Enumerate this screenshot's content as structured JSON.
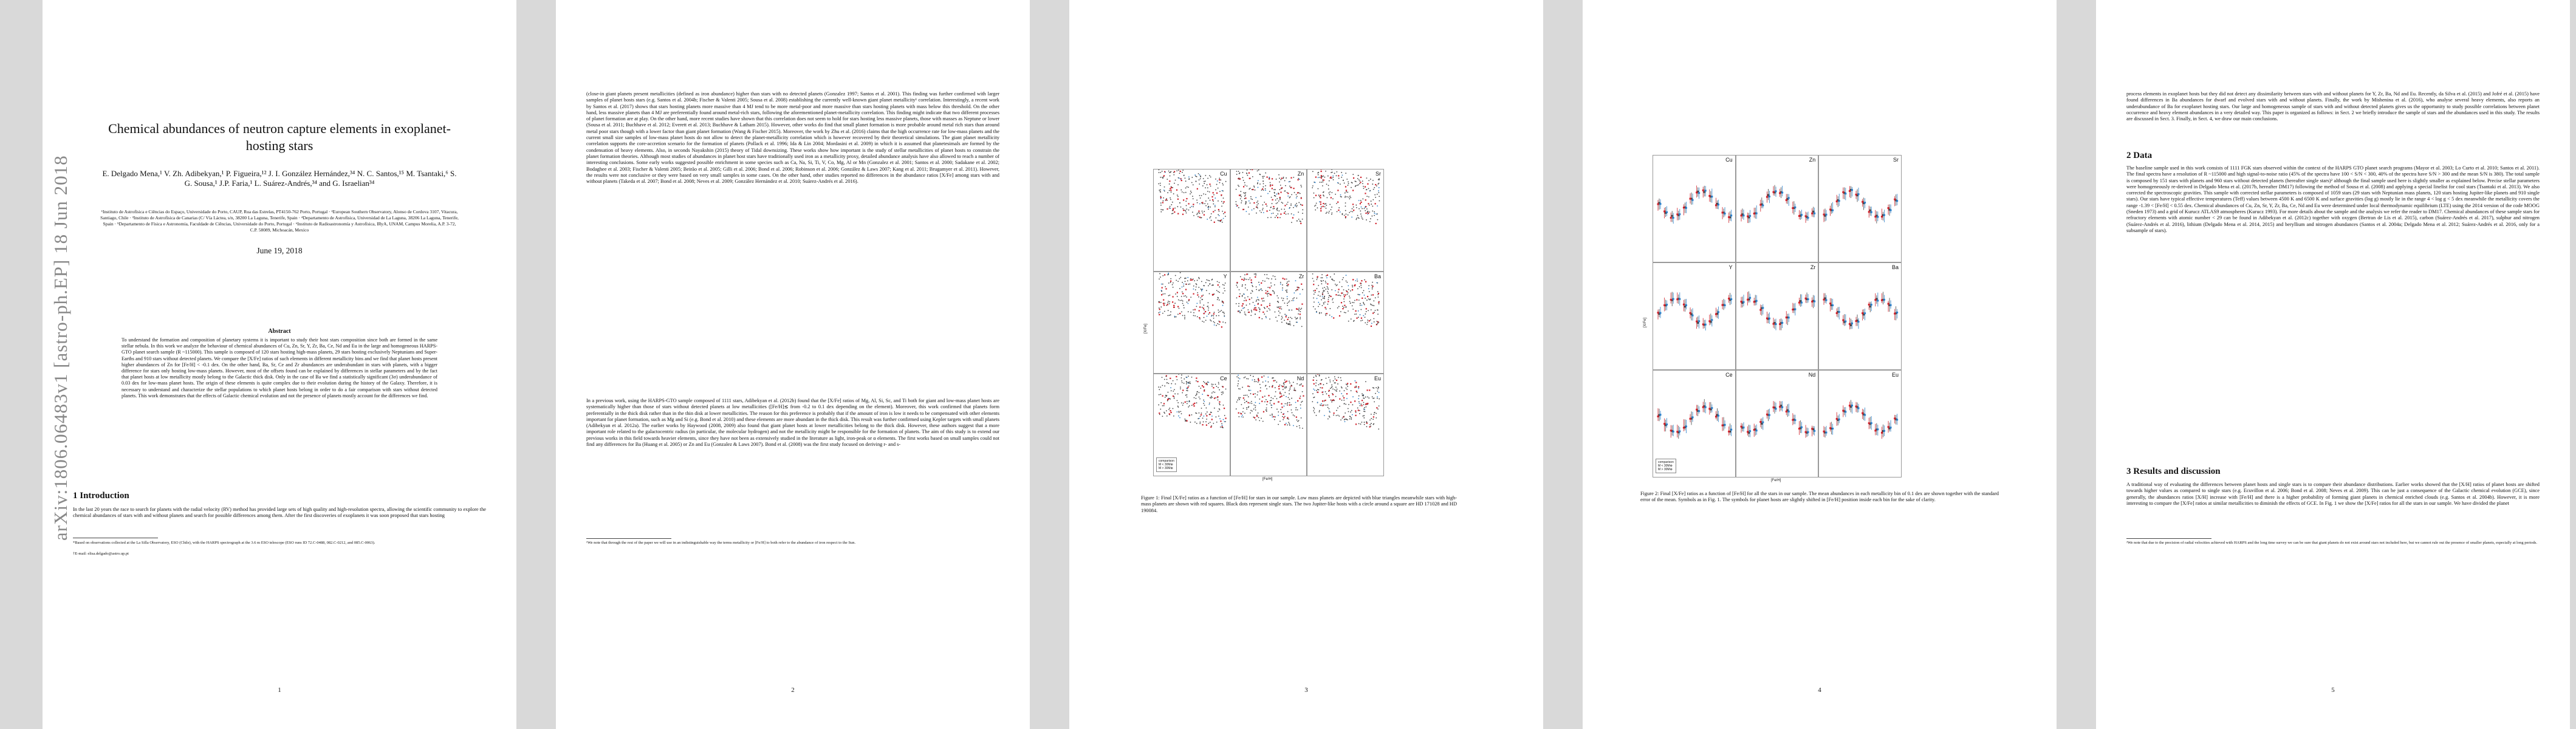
{
  "arxiv_stamp": "arXiv:1806.06483v1  [astro-ph.EP]  18 Jun 2018",
  "page1": {
    "title": "Chemical abundances of neutron capture elements in exoplanet-hosting stars",
    "authors": "E. Delgado Mena,¹ V. Zh. Adibekyan,¹ P. Figueira,¹² J. I. González Hernández,³⁴ N. C. Santos,¹⁵ M. Tsantaki,⁶ S. G. Sousa,¹ J.P. Faria,¹ L. Suárez-Andrés,³⁴ and G. Israelian³⁴",
    "affiliations": "¹Instituto de Astrofísica e Ciências do Espaço, Universidade do Porto, CAUP, Rua das Estrelas, PT4150-762 Porto, Portugal · ²European Southern Observatory, Alonso de Cordova 3107, Vitacura, Santiago, Chile · ³Instituto de Astrofísica de Canarias (C/ Vía Láctea, s/n, 38200 La Laguna, Tenerife, Spain · ⁴Departamento de Astrofísica, Universidad de La Laguna, 38206 La Laguna, Tenerife, Spain · ⁵Departamento de Física e Astronomia, Faculdade de Ciências, Universidade do Porto, Portugal · ⁶Instituto de Radioastronomía y Astrofísica, IRyA, UNAM, Campus Morelia, A.P. 3-72, C.P. 58089, Michoacán, Mexico",
    "date": "June 19, 2018",
    "abstract_heading": "Abstract",
    "abstract": "To understand the formation and composition of planetary systems it is important to study their host stars composition since both are formed in the same stellar nebula. In this work we analyze the behaviour of chemical abundances of Cu, Zn, Sr, Y, Zr, Ba, Ce, Nd and Eu in the large and homogeneous HARPS-GTO planet search sample (R ~115000). This sample is composed of 120 stars hosting high-mass planets, 29 stars hosting exclusively Neptunians and Super-Earths and 910 stars without detected planets. We compare the [X/Fe] ratios of such elements in different metallicity bins and we find that planet hosts present higher abundances of Zn for [Fe/H] < -0.1 dex. On the other hand, Ba, Sr, Ce and Zr abundances are underabundant in stars with planets, with a bigger difference for stars only hosting low-mass planets. However, most of the offsets found can be explained by differences in stellar parameters and by the fact that planet hosts at low metallicity mostly belong to the Galactic thick disk. Only in the case of Ba we find a statistically significant (3σ) underabundance of 0.03 dex for low-mass planet hosts. The origin of these elements is quite complex due to their evolution during the history of the Galaxy. Therefore, it is necessary to understand and characterize the stellar populations to which planet hosts belong in order to do a fair comparison with stars without detected planets. This work demonstrates that the effects of Galactic chemical evolution and not the presence of planets mostly account for the differences we find.",
    "section1": "1   Introduction",
    "intro": "In the last 20 years the race to search for planets with the radial velocity (RV) method has provided large sets of high quality and high-resolution spectra, allowing the scientific community to explore the chemical abundances of stars with and without planets and search for possible differences among them. After the first discoveries of exoplanets it was soon proposed that stars hosting",
    "footnote1": "*Based on observations collected at the La Silla Observatory, ESO (Chile), with the HARPS spectrograph at the 3.6 m ESO telescope (ESO runs ID 72.C-0488, 082.C-0212, and 085.C-0063).",
    "footnote2": "†E-mail: elisa.delgado@astro.up.pt",
    "page_number": "1"
  },
  "page2": {
    "col1": "(close-in giant planets present metallicities (defined as iron abundance) higher than stars with no detected planets (Gonzalez 1997; Santos et al. 2001). This finding was further confirmed with larger samples of planet hosts stars (e.g. Santos et al. 2004b; Fischer & Valenti 2005; Sousa et al. 2008) establishing the currently well-known giant planet metallicity¹ correlation. Interestingly, a recent work by Santos et al. (2017) shows that stars hosting planets more massive than 4 MJ tend to be more metal-poor and more massive than stars hosting planets with mass below this threshold. On the other hand, less massive planets than 4 MJ are preferentially found around metal-rich stars, following the aforementioned planet-metallicity correlation. This finding might indicate that two different processes of planet formation are at play. On the other hand, more recent studies have shown that this correlation does not seem to hold for stars hosting less massive planets, those with masses as Neptune or lower (Sousa et al. 2011; Buchhave et al. 2012; Everett et al. 2013; Buchhave & Latham 2015). However, other works do find that small planet formation is more probable around metal rich stars than around metal poor stars though with a lower factor than giant planet formation (Wang & Fischer 2015). Moreover, the work by Zhu et al. (2016) claims that the high occurrence rate for low-mass planets and the current small size samples of low-mass planet hosts do not allow to detect the planet-metallicity correlation which is however recovered by their theoretical simulations. The giant planet metallicity correlation supports the core-accretion scenario for the formation of planets (Pollack et al. 1996; Ida & Lin 2004; Mordasini et al. 2009) in which it is assumed that planetesimals are formed by the condensation of heavy elements. Also, in seconds Nayakshin (2015) theory of Tidal downsizing. These works show how important is the study of stellar metallicities of planet hosts to constrain the planet formation theories. Although most studies of abundances in planet host stars have traditionally used iron as a metallicity proxy, detailed abundance analysis have also allowed to reach a number of interesting conclusions. Some early works suggested possible enrichment in some species such as Ca, Na, Si, Ti, V, Co, Mg, Al or Mn (Gonzalez et al. 2001; Santos et al. 2000; Sadakane et al. 2002; Bodaghee et al. 2003; Fischer & Valenti 2005; Beirão et al. 2005; Gilli et al. 2006; Bond et al. 2006; Robinson et al. 2006; González & Laws 2007; Kang et al. 2011; Brugamyer et al. 2011). However, the results were not conclusive or they were based on very small samples in some cases. On the other hand, other studies reported no differences in the abundance ratios [X/Fe] among stars with and without planets (Takeda et al. 2007; Bond et al. 2008; Neves et al. 2009; González Hernández et al. 2010; Suárez-Andrés et al. 2016).",
    "col2": "In a previous work, using the HARPS-GTO sample composed of 1111 stars, Adibekyan et al. (2012b) found that the [X/Fe] ratios of Mg, Al, Si, Sc, and Ti both for giant and low-mass planet hosts are systematically higher than those of stars without detected planets at low metallicities ([Fe/H]≲ from -0.2 to 0.1 dex depending on the element). Moreover, this work confirmed that planets form preferentially in the thick disk rather than in the thin disk at lower metallicities. The reason for this preference is probably that if the amount of iron is low it needs to be compensated with other elements important for planet formation, such as Mg and Si (e.g. Bond et al. 2010) and these elements are more abundant in the thick disk. This result was further confirmed using Kepler targets with small planets (Adibekyan et al. 2012a). The earlier works by Haywood (2008, 2009) also found that giant planet hosts at lower metallicities belong to the thick disk. However, these authors suggest that a more important role related to the galactocentric radius (in particular, the molecular hydrogen) and not the metallicity might be responsible for the formation of planets. The aim of this study is to extend our previous works in this field towards heavier elements, since they have not been as extensively studied in the literature as light, iron-peak or α elements. The first works based on small samples could not find any differences for Ba (Huang et al. 2005) or Zn and Eu (Gonzalez & Laws 2007). Bond et al. (2008) was the first study focused on deriving r- and s-",
    "footnote": "¹We note that through the rest of the paper we will use in an indistinguishable way the terms metallicity or [Fe/H] to both refer to the abundance of iron respect to the Sun.",
    "page_number": "2"
  },
  "page3": {
    "panels": [
      "Cu",
      "Zn",
      "Sr",
      "Y",
      "Zr",
      "Ba",
      "Ce",
      "Nd",
      "Eu"
    ],
    "legend": [
      "comparison",
      "M < 30M⊕",
      "M > 30M⊕"
    ],
    "xlabel": "[Fe/H]",
    "ylabel": "[X/Fe]",
    "caption": "Figure 1: Final [X/Fe] ratios as a function of [Fe/H] for stars in our sample. Low mass planets are depicted with blue triangles meanwhile stars with high-mass planets are shown with red squares. Black dots represent single stars. The two Jupiter-like hosts with a circle around a square are HD 171028 and HD 190084.",
    "page_number": "3"
  },
  "page4": {
    "panels": [
      "Cu",
      "Zn",
      "Sr",
      "Y",
      "Zr",
      "Ba",
      "Ce",
      "Nd",
      "Eu"
    ],
    "legend": [
      "comparison",
      "M < 30M⊕",
      "M > 30M⊕"
    ],
    "xlabel": "[Fe/H]",
    "ylabel": "[X/Fe]",
    "caption": "Figure 2: Final [X/Fe] ratios as a function of [Fe/H] for all the stars in our sample. The mean abundances in each metallicity bin of 0.1 dex are shown together with the standard error of the mean. Symbols as in Fig. 1. The symbols for planet hosts are slightly shifted in [Fe/H] position inside each bin for the sake of clarity.",
    "page_number": "4"
  },
  "page5": {
    "col1": "process elements in exoplanet hosts but they did not detect any dissimilarity between stars with and without planets for Y, Zr, Ba, Nd and Eu. Recently, da Silva et al. (2015) and Jofré et al. (2015) have found differences in Ba abundances for dwarf and evolved stars with and without planets. Finally, the work by Mishenina et al. (2016), who analyse several heavy elements, also reports an underabundance of Ba for exoplanet hosting stars. Our large and homogeneous sample of stars with and without detected planets gives us the opportunity to study possible correlations between planet occurrence and heavy element abundances in a very detailed way. This paper is organized as follows: in Sect. 2 we briefly introduce the sample of stars and the abundances used in this study. The results are discussed in Sect. 3. Finally, in Sect. 4, we draw our main conclusions.",
    "section2": "2   Data",
    "data": "The baseline sample used in this work consists of 1111 FGK stars observed within the context of the HARPS GTO planet search programs (Mayor et al. 2003; Lo Curto et al. 2010; Santos et al. 2011). The final spectra have a resolution of R ~115000 and high signal-to-noise ratio (45% of the spectra have 100 < S/N < 300, 40% of the spectra have S/N > 300 and the mean S/N is 380). The total sample is composed by 151 stars with planets and 960 stars without detected planets (hereafter single stars)² although the final sample used here is slightly smaller as explained below. Precise stellar parameters were homogeneously re-derived in Delgado Mena et al. (2017b, hereafter DM17) following the method of Sousa et al. (2008) and applying a special linelist for cool stars (Tsantaki et al. 2013). We also corrected the spectroscopic gravities. This sample with corrected stellar parameters is composed of 1059 stars (29 stars with Neptunian mass planets, 120 stars hosting Jupiter-like planets and 910 single stars). Our stars have typical effective temperatures (Teff) values between 4500 K and 6500 K and surface gravities (log g) mostly lie in the range 4 < log g < 5 dex meanwhile the metallicity covers the range -1.39 < [Fe/H] < 0.55 dex. Chemical abundances of Cu, Zn, Sr, Y, Zr, Ba, Ce, Nd and Eu were determined under local thermodynamic equilibrium (LTE) using the 2014 version of the code MOOG (Sneden 1973) and a grid of Kurucz ATLAS9 atmospheres (Kurucz 1993). For more details about the sample and the analysis we refer the reader to DM17. Chemical abundances of these sample stars for refractory elements with atomic number < 29 can be found in Adibekyan et al. (2012c) together with oxygen (Bertran de Lis et al. 2015), carbon (Suárez-Andrés et al. 2017), sulphur and nitrogen (Suárez-Andrés et al. 2016), lithium (Delgado Mena et al. 2014, 2015) and beryllium and nitrogen abundances (Santos et al. 2004a; Delgado Mena et al. 2012; Suárez-Andrés et al. 2016, only for a subsample of stars).",
    "section3": "3   Results and discussion",
    "results": "A traditional way of evaluating the differences between planet hosts and single stars is to compare their abundance distributions. Earlier works showed that the [X/H] ratios of planet hosts are shifted towards higher values as compared to single stars (e.g. Ecuvillon et al. 2006; Bond et al. 2008; Neves et al. 2009). This can be just a consequence of the Galactic chemical evolution (GCE), since generally, the abundances ratios [X/H] increase with [Fe/H] and there is a higher probability of forming giant planets in chemical enriched clouds (e.g. Santos et al. 2004b). However, it is more interesting to compare the [X/Fe] ratios at similar metallicities to diminish the effects of GCE. In Fig. 1 we show the [X/Fe] ratios for all the stars in our sample. We have divided the planet",
    "footnote": "²We note that due to the precision of radial velocities achieved with HARPS and the long time survey we can be sure that giant planets do not exist around stars not included here, but we cannot rule out the presence of smaller planets, especially at long periods.",
    "page_number": "5"
  },
  "colors": {
    "single": "#444444",
    "low_mass": "#2a7fc9",
    "high_mass": "#d0202a"
  }
}
